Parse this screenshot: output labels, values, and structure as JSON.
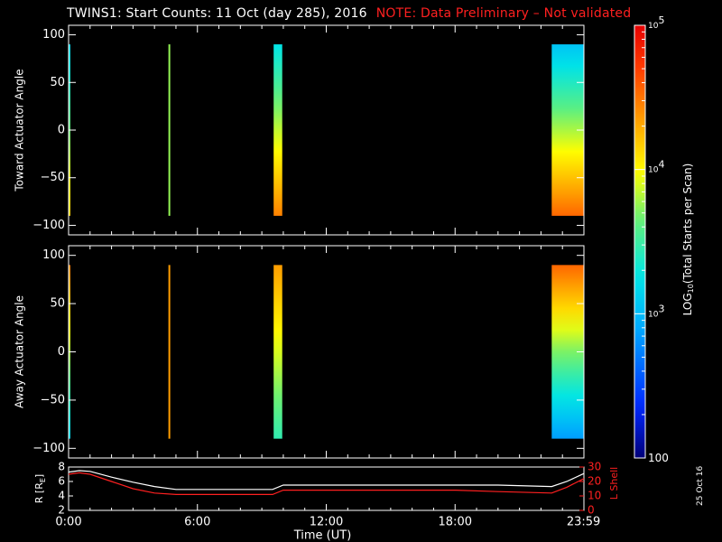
{
  "title": {
    "main": "TWINS1: Start Counts: 11 Oct (day 285), 2016",
    "note": "NOTE: Data Preliminary – Not validated"
  },
  "side_date": "25 Oct 16",
  "chart_data": [
    {
      "type": "heatmap",
      "name": "toward",
      "ylabel": "Toward Actuator Angle",
      "ylim": [
        -110,
        110
      ],
      "yticks": [
        100,
        50,
        0,
        -50,
        -100
      ],
      "xlim": [
        0,
        24
      ],
      "color_scale": "log",
      "angle_range": [
        -90,
        90
      ],
      "data_intervals": [
        {
          "start": 0.0,
          "end": 0.08,
          "top_level": 3.15,
          "bottom_level": 4.15
        },
        {
          "start": 4.65,
          "end": 4.72,
          "top_level": 3.75,
          "bottom_level": 3.75
        },
        {
          "start": 9.55,
          "end": 9.95,
          "top_level": 3.25,
          "bottom_level": 4.45
        },
        {
          "start": 22.5,
          "end": 24.0,
          "top_level": 3.05,
          "bottom_level": 4.55
        }
      ]
    },
    {
      "type": "heatmap",
      "name": "away",
      "ylabel": "Away Actuator Angle",
      "ylim": [
        -110,
        110
      ],
      "yticks": [
        100,
        50,
        0,
        -50,
        -100
      ],
      "xlim": [
        0,
        24
      ],
      "color_scale": "log",
      "angle_range": [
        -90,
        90
      ],
      "data_intervals": [
        {
          "start": 0.0,
          "end": 0.08,
          "top_level": 4.45,
          "bottom_level": 3.15
        },
        {
          "start": 4.65,
          "end": 4.72,
          "top_level": 4.35,
          "bottom_level": 4.35
        },
        {
          "start": 9.55,
          "end": 9.95,
          "top_level": 4.35,
          "bottom_level": 3.45
        },
        {
          "start": 22.5,
          "end": 24.0,
          "top_level": 4.55,
          "bottom_level": 2.85
        }
      ]
    },
    {
      "type": "line",
      "name": "orbit",
      "ylabel_left": "R [RE]",
      "ylabel_right": "L Shell",
      "ylim_left": [
        2,
        8
      ],
      "yticks_left": [
        8,
        6,
        4,
        2
      ],
      "ylim_right": [
        0,
        30
      ],
      "yticks_right": [
        30,
        20,
        10,
        0
      ],
      "xlabel": "Time (UT)",
      "xticks": [
        {
          "value": 0,
          "label": "0:00"
        },
        {
          "value": 6,
          "label": "6:00"
        },
        {
          "value": 12,
          "label": "12:00"
        },
        {
          "value": 18,
          "label": "18:00"
        },
        {
          "value": 23.983,
          "label": "23:59"
        }
      ],
      "series": [
        {
          "axis": "left",
          "color": "#ffffff",
          "x": [
            0,
            0.5,
            1,
            2,
            3,
            4,
            5,
            6,
            7,
            8,
            9,
            9.5,
            10,
            11,
            12,
            14,
            16,
            18,
            20,
            22.5,
            23.2,
            24
          ],
          "y": [
            7.3,
            7.5,
            7.4,
            6.6,
            5.9,
            5.3,
            4.9,
            4.9,
            4.9,
            4.9,
            4.9,
            4.9,
            5.5,
            5.5,
            5.5,
            5.5,
            5.5,
            5.5,
            5.5,
            5.3,
            6.0,
            7.1
          ]
        },
        {
          "axis": "right",
          "color": "#ff2020",
          "x": [
            0,
            0.5,
            1,
            2,
            3,
            4,
            5,
            6,
            7,
            8,
            9,
            9.5,
            10,
            11,
            12,
            14,
            16,
            18,
            20,
            22.5,
            23.2,
            24
          ],
          "y": [
            25,
            26,
            25,
            20,
            15,
            12,
            11,
            11,
            11,
            11,
            11,
            11,
            14,
            14,
            14,
            14,
            14,
            14,
            13,
            12,
            16,
            22
          ]
        }
      ]
    }
  ],
  "colorbar": {
    "label_prefix": "LOG",
    "label_sub": "10",
    "label_suffix": "(Total Starts per Scan)",
    "min_level": 2,
    "max_level": 5,
    "ticks": [
      {
        "level": 5,
        "base": "10",
        "exp": "5"
      },
      {
        "level": 4,
        "base": "10",
        "exp": "4"
      },
      {
        "level": 3,
        "base": "10",
        "exp": "3"
      },
      {
        "level": 2,
        "base": "100",
        "exp": ""
      }
    ]
  }
}
